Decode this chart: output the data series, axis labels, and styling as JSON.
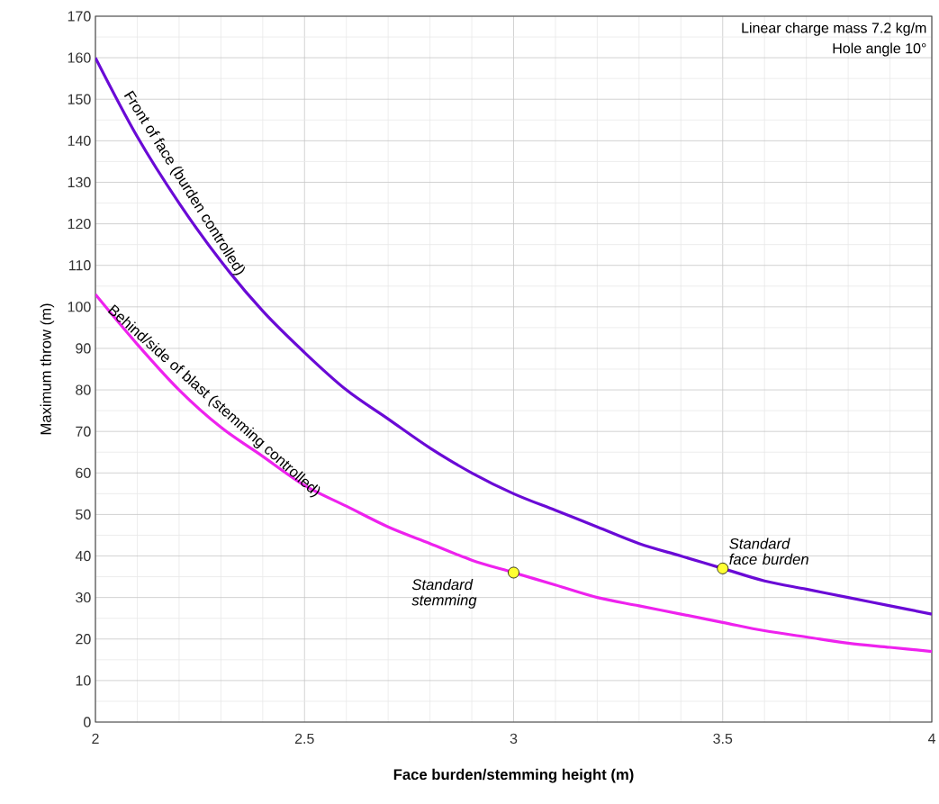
{
  "chart_data": {
    "type": "line",
    "xlabel": "Face burden/stemming height (m)",
    "ylabel": "Maximum throw (m)",
    "xlim": [
      2,
      4
    ],
    "ylim": [
      0,
      170
    ],
    "xticks": [
      2,
      2.5,
      3,
      3.5,
      4
    ],
    "yticks": [
      0,
      10,
      20,
      30,
      40,
      50,
      60,
      70,
      80,
      90,
      100,
      110,
      120,
      130,
      140,
      150,
      160,
      170
    ],
    "grid": true,
    "legend": false,
    "marker": "none",
    "line_style": "solid",
    "x": [
      2,
      2.1,
      2.2,
      2.3,
      2.4,
      2.5,
      2.6,
      2.7,
      2.8,
      2.9,
      3,
      3.1,
      3.2,
      3.3,
      3.4,
      3.5,
      3.6,
      3.7,
      3.8,
      3.9,
      4
    ],
    "series": [
      {
        "name": "Front of face (burden controlled)",
        "color": "#6a0ad6",
        "values": [
          160,
          141,
          125,
          111,
          99,
          89,
          80,
          73,
          66,
          60,
          55,
          51,
          47,
          43,
          40,
          37,
          34,
          32,
          30,
          28,
          26
        ]
      },
      {
        "name": "Behind/side of blast (stemming controlled)",
        "color": "#ee22ee",
        "values": [
          103,
          91,
          80,
          71,
          64,
          57,
          52,
          47,
          43,
          39,
          36,
          33,
          30,
          28,
          26,
          24,
          22,
          20.5,
          19,
          18,
          17
        ]
      },
      {
        "type": "scatter",
        "x": [
          3.5,
          3
        ],
        "color": "#ffff33",
        "marker": "circle",
        "values": [
          37,
          36
        ]
      }
    ],
    "annotations": [
      "Linear charge mass 7.2 kg/m",
      "Hole angle 10°",
      {
        "text": "Standard face burden",
        "x": 3.5,
        "y": 37
      },
      {
        "text": "Standard stemming",
        "x": 3,
        "y": 36
      }
    ]
  }
}
